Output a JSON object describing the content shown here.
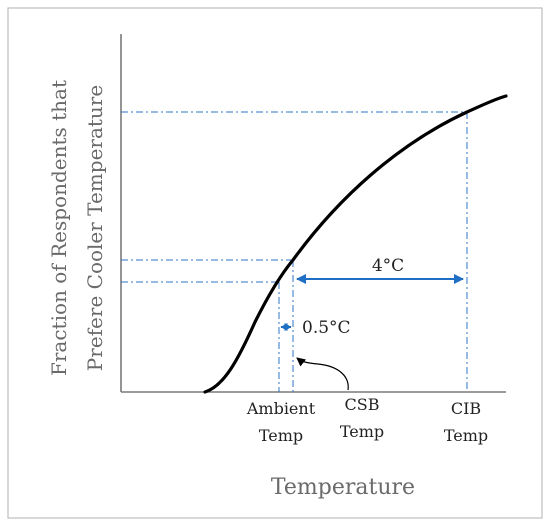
{
  "diagram": {
    "y_axis_label_line1": "Fraction of Respondents that",
    "y_axis_label_line2": "Prefere Cooler Temperature",
    "x_axis_label": "Temperature",
    "dimension_large": "4°C",
    "dimension_small": "0.5°C",
    "markers": [
      {
        "line1": "Ambient",
        "line2": "Temp"
      },
      {
        "line1": "CSB",
        "line2": "Temp"
      },
      {
        "line1": "CIB",
        "line2": "Temp"
      }
    ]
  },
  "colors": {
    "curve": "#000000",
    "guides": "#2f76c6",
    "dimension_arrows": "#1f6fc4",
    "axis": "#7a7a7a",
    "axis_title_text": "#6a6a6a",
    "text": "#222222"
  }
}
